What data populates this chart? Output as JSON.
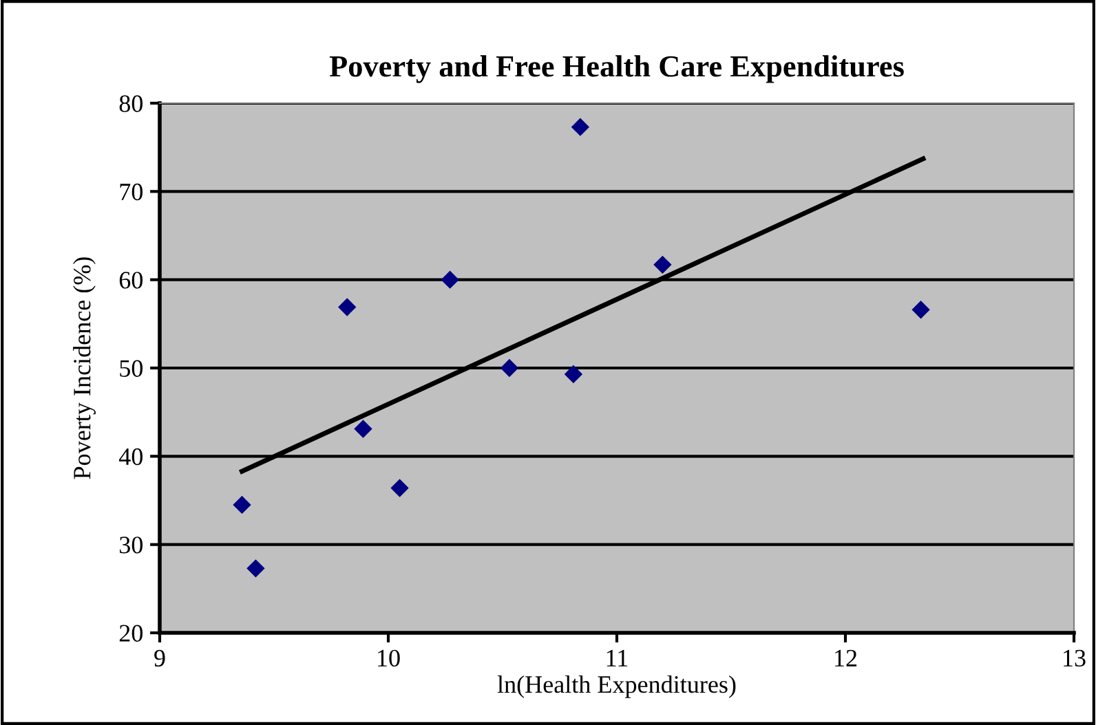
{
  "chart_data": {
    "type": "scatter",
    "title": "Poverty and Free Health Care Expenditures",
    "xlabel": "ln(Health Expenditures)",
    "ylabel": "Poverty Incidence (%)",
    "series": [
      {
        "color": "#000080",
        "marker": "diamond",
        "x": [
          9.36,
          9.42,
          9.82,
          9.89,
          10.05,
          10.27,
          10.53,
          10.81,
          10.84,
          11.2,
          12.33
        ],
        "values": [
          34.5,
          27.3,
          56.9,
          43.1,
          36.4,
          60.0,
          50.0,
          49.3,
          77.3,
          61.7,
          56.6
        ]
      },
      {
        "type": "line",
        "color": "#000000",
        "marker": "none",
        "line_style": "solid",
        "x": [
          9.36,
          12.34
        ],
        "values": [
          38.3,
          73.7
        ]
      }
    ],
    "xlim": [
      9,
      13
    ],
    "xticks": [
      9,
      10,
      11,
      12,
      13
    ],
    "ylim": [
      20,
      80
    ],
    "yticks": [
      20,
      30,
      40,
      50,
      60,
      70,
      80
    ],
    "grid": "y",
    "legend": false
  }
}
